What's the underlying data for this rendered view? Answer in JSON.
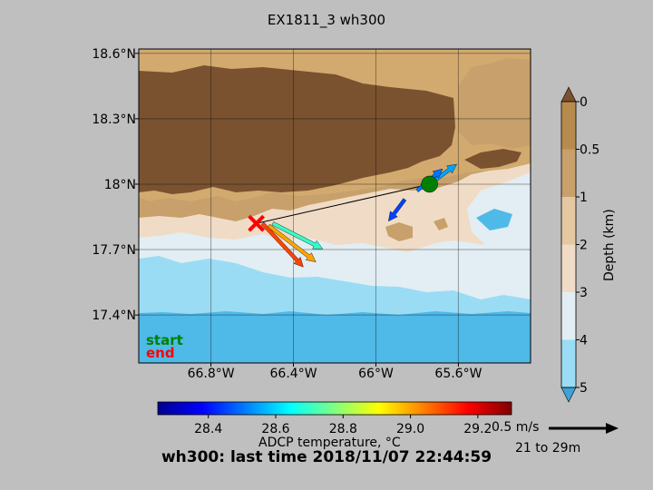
{
  "title": "EX1811_3 wh300",
  "footer": "wh300: last time 2018/11/07 22:44:59",
  "map": {
    "lat_ticks": [
      "18.6°N",
      "18.3°N",
      "18°N",
      "17.7°N",
      "17.4°N"
    ],
    "lat_values": [
      18.6,
      18.3,
      18.0,
      17.7,
      17.4
    ],
    "lon_ticks": [
      "66.8°W",
      "66.4°W",
      "66°W",
      "65.6°W"
    ],
    "lon_values": [
      -66.8,
      -66.4,
      -66.0,
      -65.6
    ],
    "lon_range": [
      -67.15,
      -65.25
    ],
    "lat_range": [
      17.18,
      18.62
    ],
    "start": {
      "lon": -65.74,
      "lat": 18.0,
      "color": "#008000"
    },
    "end": {
      "lon": -66.58,
      "lat": 17.82,
      "color": "#ff0000"
    },
    "legend_start": "start",
    "legend_end": "end"
  },
  "depth_colorbar": {
    "label": "Depth (km)",
    "ticks": [
      "0",
      "0.5",
      "1",
      "2",
      "3",
      "4",
      "5"
    ],
    "colors": [
      "#b78a4d",
      "#c7a06b",
      "#e3c8a2",
      "#f0dcc6",
      "#e2eef3",
      "#9bdcf5",
      "#4fb9e8"
    ],
    "extend_top": "#7a5230",
    "extend_bottom": "#3fa3d8"
  },
  "temp_colorbar": {
    "label": "ADCP temperature, °C",
    "ticks": [
      "28.4",
      "28.6",
      "28.8",
      "29.0",
      "29.2"
    ],
    "tick_values": [
      28.4,
      28.6,
      28.8,
      29.0,
      29.2
    ],
    "range": [
      28.25,
      29.3
    ],
    "colormap": [
      "#00008f",
      "#0000ff",
      "#0080ff",
      "#00ffff",
      "#80ff80",
      "#ffff00",
      "#ff8000",
      "#ff0000",
      "#800000"
    ]
  },
  "scale": {
    "label": "0.5 m/s",
    "range": "21 to 29m"
  },
  "chart_data": {
    "type": "map",
    "title": "EX1811_3 wh300",
    "xlabel": "",
    "ylabel": "",
    "xlim": [
      -67.15,
      -65.25
    ],
    "ylim": [
      17.18,
      18.62
    ],
    "track": [
      {
        "lon": -65.74,
        "lat": 18.0,
        "label": "start"
      },
      {
        "lon": -66.58,
        "lat": 17.82,
        "label": "end"
      }
    ],
    "current_vectors": [
      {
        "lon": -65.74,
        "lat": 18.0,
        "temp": 28.55
      },
      {
        "lon": -65.8,
        "lat": 17.97,
        "temp": 28.5
      },
      {
        "lon": -65.86,
        "lat": 17.93,
        "temp": 28.45
      },
      {
        "lon": -66.5,
        "lat": 17.82,
        "temp": 28.7
      },
      {
        "lon": -66.52,
        "lat": 17.81,
        "temp": 29.0
      },
      {
        "lon": -66.55,
        "lat": 17.82,
        "temp": 29.1
      }
    ]
  }
}
